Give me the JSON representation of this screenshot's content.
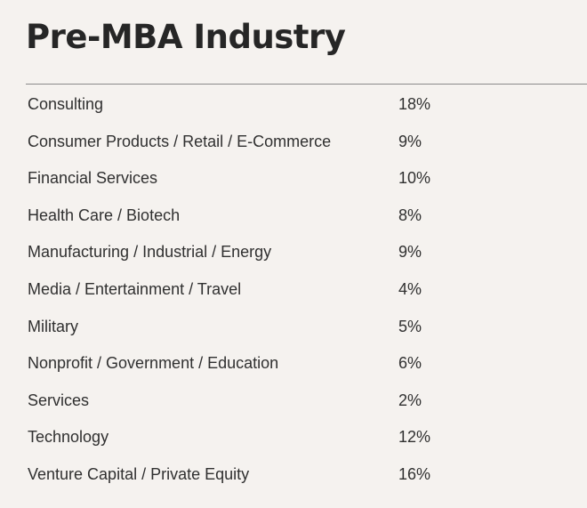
{
  "title": "Pre-MBA Industry",
  "rows": [
    {
      "industry": "Consulting",
      "percent": "18%"
    },
    {
      "industry": "Consumer Products / Retail / E-Commerce",
      "percent": "9%"
    },
    {
      "industry": "Financial Services",
      "percent": "10%"
    },
    {
      "industry": "Health Care / Biotech",
      "percent": "8%"
    },
    {
      "industry": "Manufacturing / Industrial / Energy",
      "percent": "9%"
    },
    {
      "industry": "Media / Entertainment / Travel",
      "percent": "4%"
    },
    {
      "industry": "Military",
      "percent": "5%"
    },
    {
      "industry": "Nonprofit / Government / Education",
      "percent": "6%"
    },
    {
      "industry": "Services",
      "percent": "2%"
    },
    {
      "industry": "Technology",
      "percent": "12%"
    },
    {
      "industry": "Venture Capital / Private Equity",
      "percent": "16%"
    }
  ]
}
